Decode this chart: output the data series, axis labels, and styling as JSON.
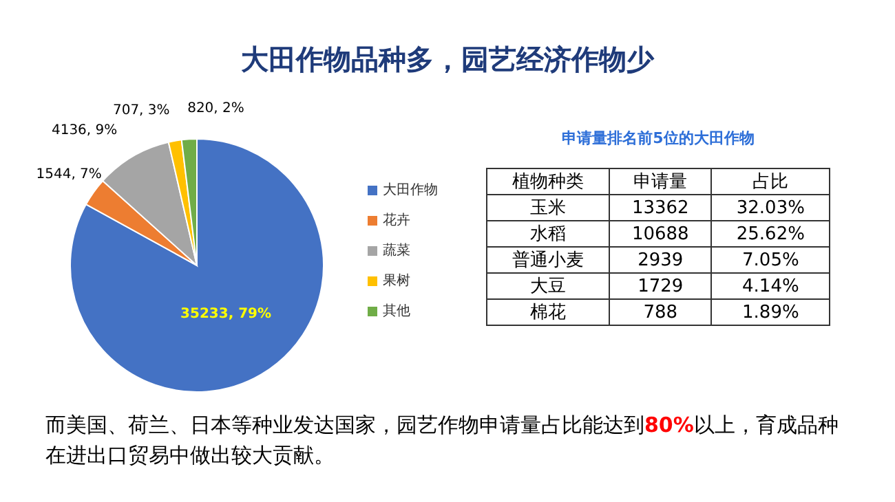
{
  "chart_data": [
    {
      "type": "pie",
      "title": "大田作物品种多，园艺经济作物少",
      "categories": [
        "大田作物",
        "花卉",
        "蔬菜",
        "果树",
        "其他"
      ],
      "values": [
        35233,
        1544,
        4136,
        707,
        820
      ],
      "colors": [
        "#4472c4",
        "#ed7d31",
        "#a5a5a5",
        "#ffc000",
        "#70ad47"
      ],
      "value_labels": [
        "35233, 79%",
        "1544, 7%",
        "4136, 9%",
        "707, 3%",
        "820, 2%"
      ],
      "legend": "right",
      "annotations": [
        "而美国、荷兰、日本等种业发达国家，园艺作物申请量占比能达到80%以上，育成品种在进出口贸易中做出较大贡献。"
      ]
    },
    {
      "type": "other",
      "title": "申请量排名前5位的大田作物",
      "xlabel": "植物种类",
      "categories": [
        "玉米",
        "水稻",
        "普通小麦",
        "大豆",
        "棉花"
      ],
      "series": [
        {
          "name": "申请量",
          "values": [
            13362,
            10688,
            2939,
            1729,
            788
          ]
        },
        {
          "name": "占比",
          "values": [
            32.03,
            25.62,
            7.05,
            4.14,
            1.89
          ],
          "value_labels": [
            "32.03%",
            "25.62%",
            "7.05%",
            "4.14%",
            "1.89%"
          ]
        }
      ],
      "data_labels": true
    }
  ]
}
